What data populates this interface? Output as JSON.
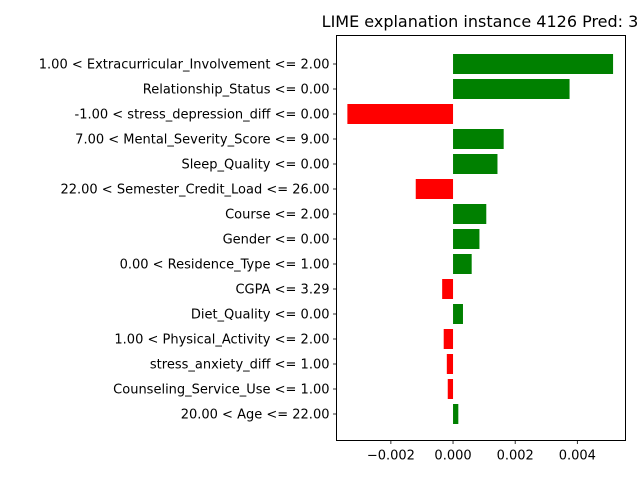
{
  "chart_data": {
    "type": "bar",
    "orientation": "horizontal",
    "title": "LIME explanation instance 4126 Pred: 3",
    "xlabel": "",
    "ylabel": "",
    "xlim": [
      -0.00375,
      0.00555
    ],
    "xticks": [
      -0.002,
      0.0,
      0.002,
      0.004
    ],
    "xtick_labels": [
      "−0.002",
      "0.000",
      "0.002",
      "0.004"
    ],
    "grid": false,
    "positive_color": "#008000",
    "negative_color": "#ff0000",
    "categories": [
      "1.00 < Extracurricular_Involvement <= 2.00",
      "Relationship_Status <= 0.00",
      "-1.00 < stress_depression_diff <= 0.00",
      "7.00 < Mental_Severity_Score <= 9.00",
      "Sleep_Quality <= 0.00",
      "22.00 < Semester_Credit_Load <= 26.00",
      "Course <= 2.00",
      "Gender <= 0.00",
      "0.00 < Residence_Type <= 1.00",
      "CGPA <= 3.29",
      "Diet_Quality <= 0.00",
      "1.00 < Physical_Activity <= 2.00",
      "stress_anxiety_diff <= 1.00",
      "Counseling_Service_Use <= 1.00",
      "20.00 < Age <= 22.00"
    ],
    "values": [
      0.00515,
      0.00375,
      -0.0034,
      0.00163,
      0.00143,
      -0.0012,
      0.00107,
      0.00085,
      0.0006,
      -0.00035,
      0.00032,
      -0.0003,
      -0.0002,
      -0.00017,
      0.00017
    ]
  }
}
